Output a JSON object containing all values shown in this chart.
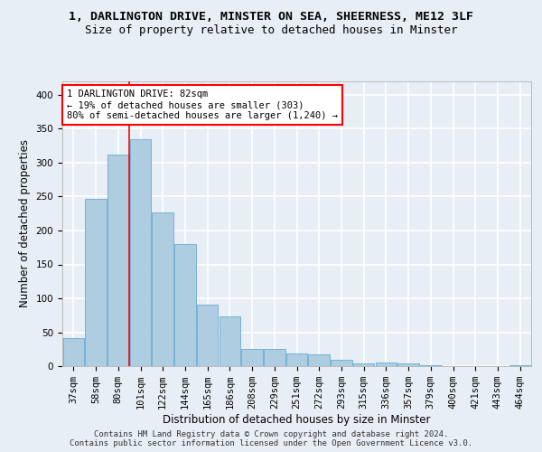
{
  "title_line1": "1, DARLINGTON DRIVE, MINSTER ON SEA, SHEERNESS, ME12 3LF",
  "title_line2": "Size of property relative to detached houses in Minster",
  "xlabel": "Distribution of detached houses by size in Minster",
  "ylabel": "Number of detached properties",
  "categories": [
    "37sqm",
    "58sqm",
    "80sqm",
    "101sqm",
    "122sqm",
    "144sqm",
    "165sqm",
    "186sqm",
    "208sqm",
    "229sqm",
    "251sqm",
    "272sqm",
    "293sqm",
    "315sqm",
    "336sqm",
    "357sqm",
    "379sqm",
    "400sqm",
    "421sqm",
    "443sqm",
    "464sqm"
  ],
  "values": [
    42,
    246,
    312,
    335,
    226,
    180,
    91,
    74,
    26,
    26,
    19,
    18,
    10,
    4,
    5,
    4,
    2,
    0,
    0,
    0,
    2
  ],
  "bar_color": "#aecde0",
  "bar_edge_color": "#6aaad4",
  "red_line_x": 2.5,
  "annotation_title": "1 DARLINGTON DRIVE: 82sqm",
  "annotation_line1": "← 19% of detached houses are smaller (303)",
  "annotation_line2": "80% of semi-detached houses are larger (1,240) →",
  "ylim": [
    0,
    420
  ],
  "yticks": [
    0,
    50,
    100,
    150,
    200,
    250,
    300,
    350,
    400
  ],
  "footer_line1": "Contains HM Land Registry data © Crown copyright and database right 2024.",
  "footer_line2": "Contains public sector information licensed under the Open Government Licence v3.0.",
  "bg_color": "#e8eef5",
  "plot_bg_color": "#e8eef5",
  "grid_color": "#ffffff",
  "title_fontsize": 9.5,
  "subtitle_fontsize": 9,
  "axis_label_fontsize": 8.5,
  "tick_fontsize": 7.5,
  "footer_fontsize": 6.5,
  "annotation_fontsize": 7.5
}
